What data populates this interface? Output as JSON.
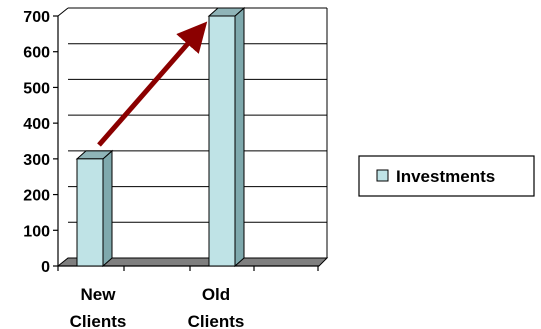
{
  "chart_data": {
    "type": "bar",
    "categories": [
      [
        "New",
        "Clients"
      ],
      [
        "Old",
        "Clients"
      ]
    ],
    "series": [
      {
        "name": "Investments",
        "values": [
          300,
          700
        ]
      }
    ],
    "ylim": [
      0,
      700
    ],
    "yticks": [
      0,
      100,
      200,
      300,
      400,
      500,
      600,
      700
    ],
    "grid": true,
    "legend": "right",
    "annotation": {
      "type": "arrow",
      "from": "New Clients",
      "to": "Old Clients"
    },
    "colors": {
      "bar_front": "#bfe3e6",
      "bar_side": "#7fa9ad",
      "bar_top": "#8fb4b8",
      "arrow": "#8b0000",
      "floor": "#7f7f7f"
    }
  }
}
